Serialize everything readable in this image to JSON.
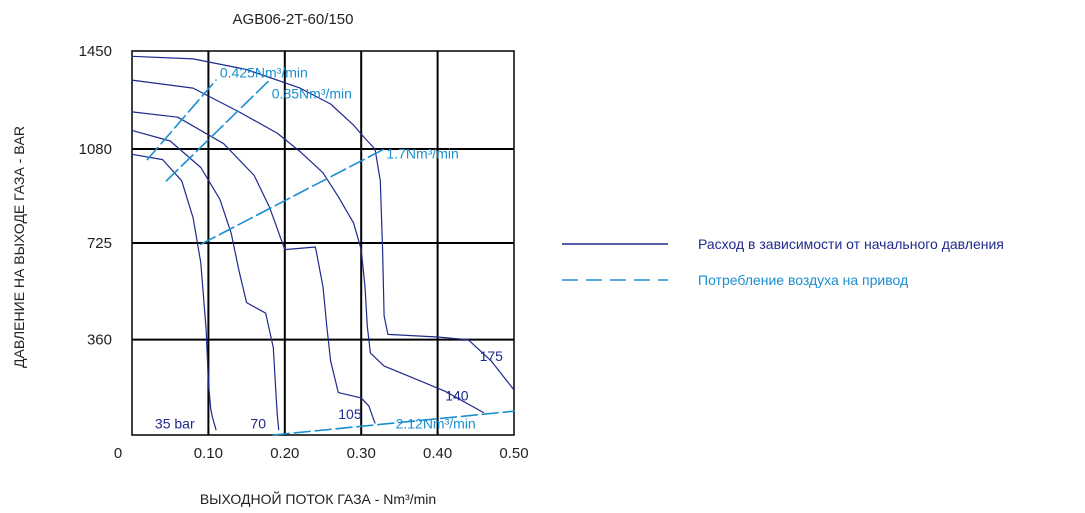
{
  "colors": {
    "flow": "#1f2a8c",
    "air": "#1b8fd0",
    "grid": "#000000",
    "text": "#222222"
  },
  "chart_data": {
    "type": "line",
    "title": "AGB06-2T-60/150",
    "xlabel": "ВЫХОДНОЙ ПОТОК ГАЗА - Nm³/min",
    "ylabel": "ДАВЛЕНИЕ НА ВЫХОДЕ ГАЗА - BAR",
    "xlim": [
      0,
      0.5
    ],
    "ylim": [
      0,
      1450
    ],
    "x_ticks": [
      "0",
      "0.10",
      "0.20",
      "0.30",
      "0.40",
      "0.50"
    ],
    "x_tick_values": [
      0,
      0.1,
      0.2,
      0.3,
      0.4,
      0.5
    ],
    "y_ticks": [
      "360",
      "725",
      "1080",
      "1450"
    ],
    "y_tick_values": [
      360,
      725,
      1080,
      1450
    ],
    "grid": true,
    "legend_position": "right",
    "legend": [
      {
        "label": "Расход в зависимости от начального давления",
        "style": "solid",
        "color": "#1f2a8c"
      },
      {
        "label": "Потребление воздуха на привод",
        "style": "dashed",
        "color": "#1b8fd0"
      }
    ],
    "series": [
      {
        "name": "35 bar",
        "style": "solid",
        "x": [
          0.0,
          0.04,
          0.065,
          0.08,
          0.09,
          0.097,
          0.1,
          0.103,
          0.105,
          0.108,
          0.11
        ],
        "y": [
          1060,
          1040,
          960,
          820,
          650,
          400,
          200,
          100,
          70,
          40,
          20
        ]
      },
      {
        "name": "70",
        "style": "solid",
        "x": [
          0.0,
          0.05,
          0.09,
          0.115,
          0.13,
          0.14,
          0.15,
          0.175,
          0.185,
          0.188,
          0.19,
          0.192
        ],
        "y": [
          1150,
          1110,
          1010,
          890,
          760,
          620,
          500,
          460,
          330,
          180,
          80,
          20
        ]
      },
      {
        "name": "105",
        "style": "solid",
        "x": [
          0.0,
          0.06,
          0.12,
          0.16,
          0.18,
          0.2,
          0.24,
          0.25,
          0.255,
          0.26,
          0.27,
          0.3,
          0.31,
          0.318
        ],
        "y": [
          1220,
          1200,
          1100,
          980,
          860,
          700,
          710,
          560,
          410,
          280,
          160,
          140,
          110,
          45
        ]
      },
      {
        "name": "140",
        "style": "solid",
        "x": [
          0.0,
          0.08,
          0.14,
          0.19,
          0.22,
          0.25,
          0.27,
          0.29,
          0.3,
          0.305,
          0.308,
          0.312,
          0.33,
          0.36,
          0.41,
          0.46
        ],
        "y": [
          1340,
          1310,
          1220,
          1140,
          1070,
          990,
          900,
          800,
          700,
          560,
          410,
          310,
          260,
          225,
          165,
          85
        ]
      },
      {
        "name": "175",
        "style": "solid",
        "x": [
          0.0,
          0.08,
          0.15,
          0.22,
          0.26,
          0.29,
          0.305,
          0.318,
          0.325,
          0.328,
          0.33,
          0.335,
          0.4,
          0.44,
          0.47,
          0.5
        ],
        "y": [
          1430,
          1420,
          1380,
          1310,
          1250,
          1170,
          1120,
          1080,
          960,
          700,
          450,
          380,
          370,
          360,
          280,
          170
        ]
      },
      {
        "name": "0.425Nm³/min",
        "style": "dashed",
        "x": [
          0.02,
          0.11
        ],
        "y": [
          1040,
          1340
        ]
      },
      {
        "name": "0.85Nm³/min",
        "style": "dashed",
        "x": [
          0.045,
          0.18
        ],
        "y": [
          960,
          1340
        ]
      },
      {
        "name": "1.7Nm³/min",
        "style": "dashed",
        "x": [
          0.09,
          0.33
        ],
        "y": [
          720,
          1080
        ]
      },
      {
        "name": "2.12Nm³/min",
        "style": "dashed",
        "x": [
          0.185,
          0.5
        ],
        "y": [
          0,
          90
        ]
      }
    ],
    "annotations": [
      {
        "text": "35 bar",
        "color": "#1f2a8c",
        "x": 0.03,
        "y": 25
      },
      {
        "text": "70",
        "color": "#1f2a8c",
        "x": 0.155,
        "y": 25
      },
      {
        "text": "105",
        "color": "#1f2a8c",
        "x": 0.27,
        "y": 60
      },
      {
        "text": "140",
        "color": "#1f2a8c",
        "x": 0.41,
        "y": 130
      },
      {
        "text": "175",
        "color": "#1f2a8c",
        "x": 0.455,
        "y": 280
      },
      {
        "text": "0.425Nm³/min",
        "color": "#1b8fd0",
        "x": 0.115,
        "y": 1350
      },
      {
        "text": "0.85Nm³/min",
        "color": "#1b8fd0",
        "x": 0.183,
        "y": 1270
      },
      {
        "text": "1.7Nm³/min",
        "color": "#1b8fd0",
        "x": 0.333,
        "y": 1045
      },
      {
        "text": "2.12Nm³/min",
        "color": "#1b8fd0",
        "x": 0.345,
        "y": 25
      }
    ]
  }
}
